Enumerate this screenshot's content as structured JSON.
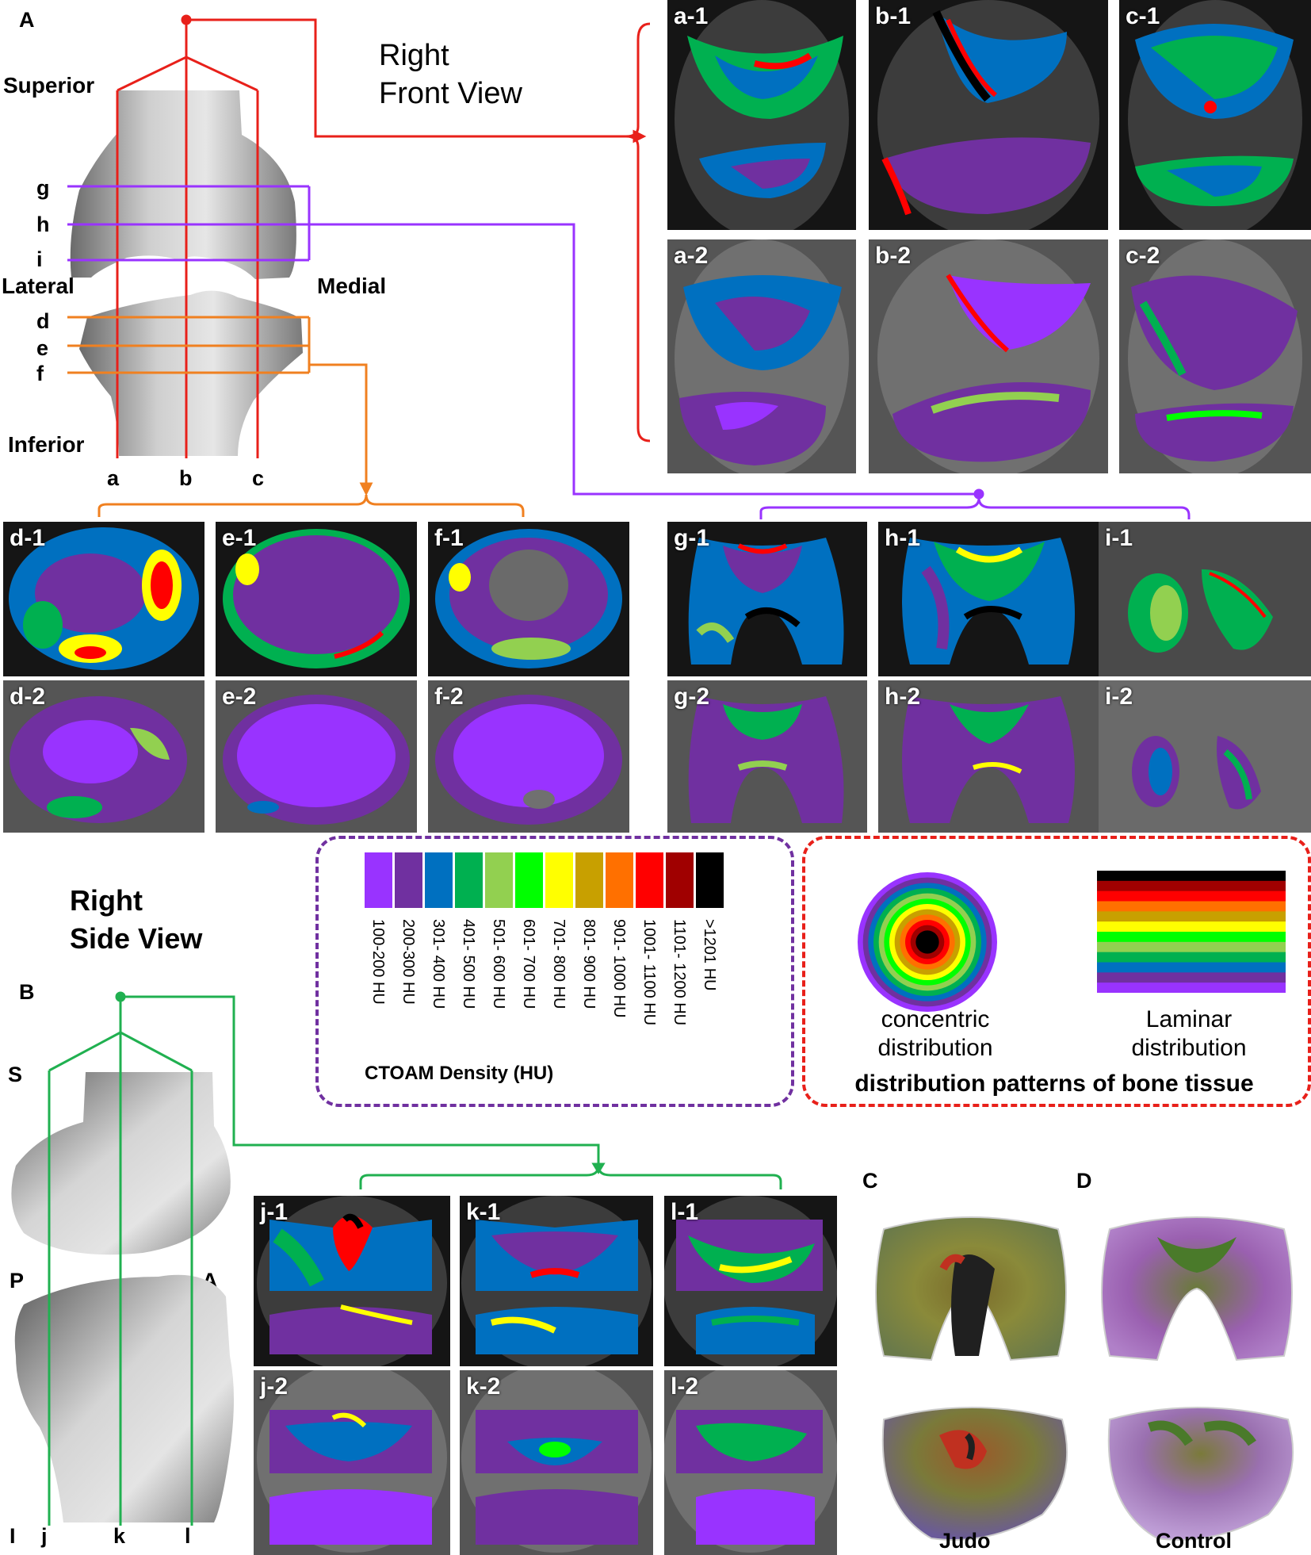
{
  "panelA": {
    "letter": "A",
    "title": "Right\nFront View",
    "superior": "Superior",
    "inferior": "Inferior",
    "lateral": "Lateral",
    "medial": "Medial",
    "rows": [
      "g",
      "h",
      "i",
      "d",
      "e",
      "f"
    ],
    "cols": [
      "a",
      "b",
      "c"
    ]
  },
  "panelB": {
    "letter": "B",
    "title": "Right\nSide View",
    "s": "S",
    "p": "P",
    "a": "A",
    "i": "I",
    "cols": [
      "j",
      "k",
      "l"
    ]
  },
  "panels": {
    "a1": "a-1",
    "b1": "b-1",
    "c1": "c-1",
    "a2": "a-2",
    "b2": "b-2",
    "c2": "c-2",
    "d1": "d-1",
    "e1": "e-1",
    "f1": "f-1",
    "g1": "g-1",
    "h1": "h-1",
    "i1": "i-1",
    "d2": "d-2",
    "e2": "e-2",
    "f2": "f-2",
    "g2": "g-2",
    "h2": "h-2",
    "i2": "i-2",
    "j1": "j-1",
    "k1": "k-1",
    "l1": "l-1",
    "j2": "j-2",
    "k2": "k-2",
    "l2": "l-2"
  },
  "legend": {
    "title": "CTOAM Density (HU)",
    "bins": [
      {
        "label": "100-200 HU",
        "color": "#9933ff"
      },
      {
        "label": "200-300 HU",
        "color": "#7030a0"
      },
      {
        "label": "301- 400 HU",
        "color": "#0070c0"
      },
      {
        "label": "401- 500 HU",
        "color": "#00b050"
      },
      {
        "label": "501- 600 HU",
        "color": "#92d050"
      },
      {
        "label": "601- 700 HU",
        "color": "#00ff00"
      },
      {
        "label": "701- 800 HU",
        "color": "#ffff00"
      },
      {
        "label": "801- 900 HU",
        "color": "#c8a000"
      },
      {
        "label": "901- 1000 HU",
        "color": "#ff7000"
      },
      {
        "label": "1001- 1100 HU",
        "color": "#ff0000"
      },
      {
        "label": "1101- 1200 HU",
        "color": "#a00000"
      },
      {
        "label": ">1201 HU",
        "color": "#000000"
      }
    ]
  },
  "patterns": {
    "concentric": "concentric\ndistribution",
    "laminar": "Laminar\ndistribution",
    "title": "distribution patterns of bone tissue"
  },
  "panelC": {
    "letter": "C",
    "caption": "Judo"
  },
  "panelD": {
    "letter": "D",
    "caption": "Control"
  },
  "colors": {
    "front": "#e8201a",
    "purple": "#9933ff",
    "orange": "#f08020",
    "green": "#20b050"
  }
}
